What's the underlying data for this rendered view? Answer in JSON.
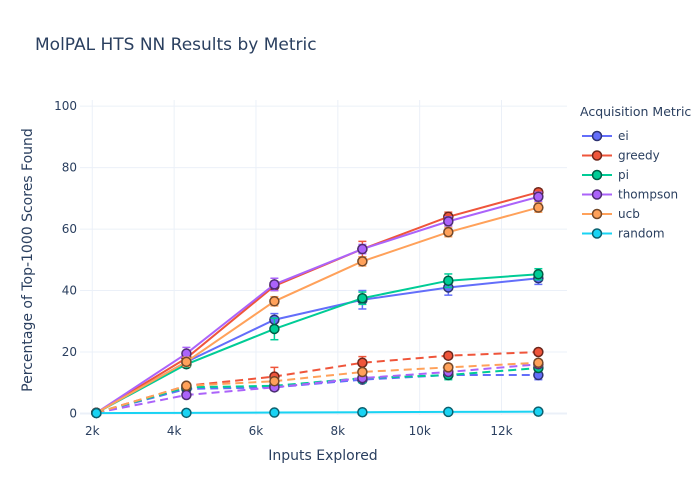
{
  "chart_data": {
    "type": "line",
    "title": "MolPAL HTS NN Results by Metric",
    "xlabel": "Inputs Explored",
    "ylabel": "Percentage of Top-1000 Scores Found",
    "xlim": [
      1700,
      13600
    ],
    "ylim": [
      -0.5,
      102
    ],
    "xticks": [
      2000,
      4000,
      6000,
      8000,
      10000,
      12000
    ],
    "xtick_labels": [
      "2k",
      "4k",
      "6k",
      "8k",
      "10k",
      "12k"
    ],
    "yticks": [
      0,
      20,
      40,
      60,
      80,
      100
    ],
    "ytick_labels": [
      "0",
      "20",
      "40",
      "60",
      "80",
      "100"
    ],
    "grid": true,
    "legend_title": "Acquisition Metric",
    "legend_position": "right",
    "x": [
      2100,
      4300,
      6450,
      8600,
      10700,
      12900
    ],
    "series": [
      {
        "name": "ei",
        "color": "#636efa",
        "style": "solid",
        "values": [
          0.2,
          16.8,
          30.5,
          37.0,
          41.0,
          44.0
        ],
        "errors": [
          0.3,
          1.5,
          2.0,
          3.0,
          2.5,
          2.0
        ]
      },
      {
        "name": "greedy",
        "color": "#ef553b",
        "style": "solid",
        "values": [
          0.2,
          18.0,
          41.5,
          53.5,
          64.0,
          72.0
        ],
        "errors": [
          0.3,
          1.5,
          1.5,
          2.5,
          1.5,
          1.0
        ]
      },
      {
        "name": "pi",
        "color": "#00cc96",
        "style": "solid",
        "values": [
          0.2,
          16.0,
          27.5,
          37.5,
          43.2,
          45.3
        ],
        "errors": [
          0.3,
          1.0,
          3.5,
          2.0,
          2.2,
          1.8
        ]
      },
      {
        "name": "thompson",
        "color": "#ab63fa",
        "style": "solid",
        "values": [
          0.2,
          19.5,
          42.0,
          53.5,
          62.5,
          70.5
        ],
        "errors": [
          0.3,
          2.0,
          2.0,
          1.5,
          1.5,
          1.5
        ]
      },
      {
        "name": "ucb",
        "color": "#ffa15a",
        "style": "solid",
        "values": [
          0.2,
          16.8,
          36.5,
          49.5,
          59.0,
          67.0
        ],
        "errors": [
          0.3,
          1.5,
          1.5,
          1.5,
          1.5,
          1.5
        ]
      },
      {
        "name": "random",
        "color": "#19d3f3",
        "style": "solid",
        "values": [
          0.1,
          0.2,
          0.3,
          0.4,
          0.5,
          0.6
        ],
        "errors": [
          0.05,
          0.05,
          0.05,
          0.05,
          0.05,
          0.05
        ]
      },
      {
        "name": "",
        "color": "#636efa",
        "style": "dash",
        "values": [
          0.2,
          8.0,
          8.5,
          11.0,
          12.5,
          12.5
        ],
        "errors": [
          0.3,
          0.8,
          1.0,
          1.0,
          1.0,
          1.5
        ]
      },
      {
        "name": "",
        "color": "#ef553b",
        "style": "dash",
        "values": [
          0.2,
          9.0,
          12.0,
          16.5,
          18.8,
          20.0
        ],
        "errors": [
          0.3,
          1.0,
          3.0,
          2.0,
          1.0,
          0.8
        ]
      },
      {
        "name": "",
        "color": "#00cc96",
        "style": "dash",
        "values": [
          0.2,
          8.5,
          9.0,
          11.5,
          12.5,
          14.8
        ],
        "errors": [
          0.3,
          1.0,
          1.5,
          1.5,
          1.5,
          1.0
        ]
      },
      {
        "name": "",
        "color": "#ab63fa",
        "style": "dash",
        "values": [
          0.2,
          6.0,
          8.5,
          11.5,
          13.5,
          16.0
        ],
        "errors": [
          0.3,
          0.8,
          1.0,
          1.0,
          1.0,
          1.0
        ]
      },
      {
        "name": "",
        "color": "#ffa15a",
        "style": "dash",
        "values": [
          0.2,
          9.0,
          10.5,
          13.5,
          15.0,
          16.5
        ],
        "errors": [
          0.3,
          1.0,
          1.0,
          1.0,
          1.0,
          1.0
        ]
      }
    ]
  }
}
